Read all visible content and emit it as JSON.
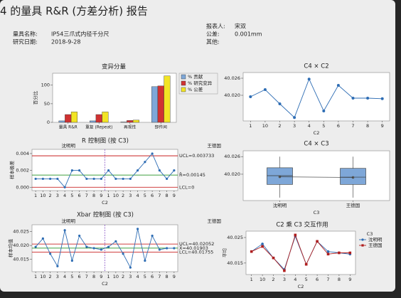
{
  "header": {
    "title": "4 的量具 R&R (方差分析) 报告",
    "fields": [
      {
        "label": "量具名称:",
        "value": "IP54三爪式内径千分尺"
      },
      {
        "label": "研究日期:",
        "value": "2018-9-28"
      },
      {
        "label": "报表人:",
        "value": "宋双"
      },
      {
        "label": "公差:",
        "value": "0.001mm"
      },
      {
        "label": "其他:"
      }
    ]
  },
  "chart_data": [
    {
      "type": "bar",
      "title": "变异分量",
      "ylabel": "百分比",
      "categories": [
        "量具 R&R",
        "重复 (Repeat)",
        "再现性",
        "部件间"
      ],
      "series": [
        {
          "name": "% 贡献",
          "color": "#7ea7d8",
          "values": [
            4,
            4,
            1,
            96
          ]
        },
        {
          "name": "% 研究变异",
          "color": "#d03232",
          "values": [
            21,
            21,
            5,
            98
          ]
        },
        {
          "name": "% 公差",
          "color": "#f2e424",
          "values": [
            28,
            28,
            6,
            125
          ]
        }
      ],
      "ylim": [
        0,
        132
      ],
      "yticks": [
        0,
        50,
        100
      ]
    },
    {
      "type": "control",
      "title": "R 控制图 (按 C3)",
      "ylabel": "样本极差",
      "xlabel": "C2",
      "groups": [
        "沈明明",
        "王德国"
      ],
      "categories": [
        "1",
        "10",
        "2",
        "3",
        "4",
        "5",
        "6",
        "7",
        "8",
        "9",
        "1",
        "10",
        "2",
        "3",
        "4",
        "5",
        "6",
        "7",
        "8",
        "9"
      ],
      "values": [
        0.001,
        0.001,
        0.001,
        0.001,
        0,
        0.002,
        0.002,
        0.001,
        0.001,
        0.001,
        0.002,
        0.001,
        0.001,
        0.001,
        0.002,
        0.003,
        0.004,
        0.002,
        0.001,
        0.002
      ],
      "color": "#2e6db4",
      "limits": [
        {
          "label": "UCL=0.003733",
          "value": 0.003733,
          "color": "#c00000"
        },
        {
          "label": "R̄=0.00145",
          "value": 0.00145,
          "color": "#008000"
        },
        {
          "label": "LCL=0",
          "value": 0,
          "color": "#c00000"
        }
      ],
      "ylim": [
        -0.0004,
        0.0045
      ],
      "yticks": [
        {
          "value": 0,
          "label": "0.000"
        },
        0.002,
        0.004
      ]
    },
    {
      "type": "control",
      "title": "Xbar 控制图 (按 C3)",
      "ylabel": "样本均值",
      "xlabel": "C2",
      "groups": [
        "沈明明",
        "王德国"
      ],
      "categories": [
        "1",
        "10",
        "2",
        "3",
        "4",
        "5",
        "6",
        "7",
        "8",
        "9",
        "1",
        "10",
        "2",
        "3",
        "4",
        "5",
        "6",
        "7",
        "8",
        "9"
      ],
      "values": [
        40.0195,
        40.0225,
        40.017,
        40.0125,
        40.0255,
        40.0145,
        40.0235,
        40.0195,
        40.019,
        40.0185,
        40.0195,
        40.0215,
        40.017,
        40.012,
        40.026,
        40.0145,
        40.0235,
        40.0185,
        40.019,
        40.019
      ],
      "color": "#2e6db4",
      "limits": [
        {
          "label": "UCL=40.02052",
          "value": 40.02052,
          "color": "#c00000"
        },
        {
          "label": "X̄=40.01903",
          "value": 40.01903,
          "color": "#008000"
        },
        {
          "label": "LCL=40.01755",
          "value": 40.01755,
          "color": "#c00000"
        }
      ],
      "ylim": [
        40.0105,
        40.0275
      ],
      "yticks": [
        40.015,
        {
          "value": 40.02,
          "label": "40.020"
        },
        40.025
      ]
    },
    {
      "type": "line",
      "title": "C4 × C2",
      "xlabel": "C2",
      "categories": [
        "1",
        "10",
        "2",
        "3",
        "4",
        "5",
        "6",
        "7",
        "8",
        "9"
      ],
      "values": [
        40.0195,
        40.022,
        40.017,
        40.0122,
        40.0257,
        40.0145,
        40.0235,
        40.019,
        40.019,
        40.0188
      ],
      "color": "#2e6db4",
      "ylim": [
        40.011,
        40.028
      ],
      "yticks": [
        {
          "value": 40.02,
          "label": "40.020"
        },
        40.026
      ]
    },
    {
      "type": "box",
      "title": "C4 × C3",
      "xlabel": "C3",
      "categories": [
        "沈明明",
        "王德国"
      ],
      "min": [
        40.012,
        40.012
      ],
      "q1": [
        40.0165,
        40.0165
      ],
      "median": [
        40.0195,
        40.019
      ],
      "q3": [
        40.0222,
        40.022
      ],
      "max": [
        40.026,
        40.026
      ],
      "mean": [
        40.0191,
        40.0189
      ],
      "color": "#7ea7d8",
      "ylim": [
        40.011,
        40.028
      ],
      "yticks": [
        {
          "value": 40.02,
          "label": "40.020"
        },
        40.026
      ]
    },
    {
      "type": "interaction",
      "title": "C2 乘 C3 交互作用",
      "ylabel": "平均",
      "xlabel": "C2",
      "legend_title": "C3",
      "categories": [
        "1",
        "10",
        "2",
        "3",
        "4",
        "5",
        "6",
        "7",
        "8",
        "9"
      ],
      "series": [
        {
          "name": "沈明明",
          "color": "#2e6db4",
          "values": [
            40.0195,
            40.0225,
            40.017,
            40.0125,
            40.0255,
            40.0145,
            40.0235,
            40.0195,
            40.019,
            40.0185
          ]
        },
        {
          "name": "王德国",
          "color": "#b01e1e",
          "values": [
            40.0195,
            40.0215,
            40.017,
            40.012,
            40.026,
            40.0145,
            40.0235,
            40.0185,
            40.019,
            40.019
          ]
        }
      ],
      "ylim": [
        40.0105,
        40.0275
      ],
      "yticks": [
        40.015,
        40.025
      ]
    }
  ]
}
